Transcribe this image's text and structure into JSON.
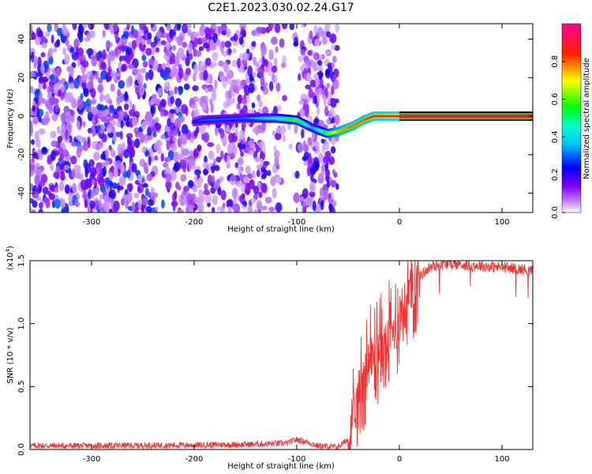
{
  "title": "C2E1.2023.030.02.24.G17",
  "chart_data": [
    {
      "type": "heatmap",
      "xlabel": "Height of straight line (km)",
      "ylabel": "Frequency (Hz)",
      "xlim": [
        -360,
        130
      ],
      "ylim": [
        -50,
        48
      ],
      "xticks": [
        -300,
        -200,
        -100,
        0,
        100
      ],
      "yticks": [
        -40,
        -20,
        0,
        20,
        40
      ],
      "colorbar": {
        "label": "Normalized spectral amplitude",
        "range": [
          0,
          1
        ],
        "ticks": [
          0.0,
          0.2,
          0.4,
          0.6,
          0.8
        ],
        "tick_labels": [
          "0.0",
          "0.2",
          "0.4",
          "0.6",
          "0.8"
        ],
        "colors": [
          "#ffffff",
          "#8000ff",
          "#0000ff",
          "#00ffff",
          "#00ff00",
          "#ffff00",
          "#ff0000",
          "#ff0080"
        ]
      },
      "signal_track": {
        "description_points_x": [
          -200,
          -190,
          -150,
          -120,
          -100,
          -85,
          -70,
          -60,
          -45,
          -35,
          -25,
          -10,
          0,
          130
        ],
        "description_points_y": [
          -3,
          -2,
          -1,
          -1,
          -2,
          -6,
          -9,
          -8,
          -5,
          -2,
          0,
          0,
          0,
          0
        ],
        "amplitude": [
          0.25,
          0.3,
          0.3,
          0.45,
          0.6,
          0.35,
          0.6,
          0.75,
          0.8,
          0.8,
          0.85,
          0.9,
          0.9,
          0.92
        ]
      },
      "noise_region_x": [
        -360,
        -60
      ],
      "grid": false
    },
    {
      "type": "line",
      "xlabel": "Height of straight line (km)",
      "ylabel": "SNR (10 * v/v)",
      "y_multiplier_label": "(x10",
      "y_multiplier_exp": "4",
      "y_multiplier_close": ")",
      "xlim": [
        -360,
        130
      ],
      "ylim": [
        0,
        15000
      ],
      "xticks": [
        -300,
        -200,
        -100,
        0,
        100
      ],
      "yticks": [
        0,
        5000,
        10000,
        15000
      ],
      "ytick_labels": [
        "0.0",
        "0.5",
        "1.0",
        "1.5"
      ],
      "series": [
        {
          "color": "#ee3333",
          "x": [
            -360,
            -300,
            -200,
            -150,
            -110,
            -100,
            -90,
            -80,
            -60,
            -50,
            -45,
            -40,
            -35,
            -30,
            -25,
            -20,
            -15,
            -10,
            -5,
            0,
            10,
            20,
            30,
            40,
            50,
            60,
            70,
            80,
            90,
            100,
            110,
            120,
            130
          ],
          "y": [
            300,
            300,
            350,
            400,
            500,
            800,
            600,
            300,
            200,
            800,
            2000,
            4500,
            6000,
            7000,
            7500,
            8000,
            8200,
            9000,
            9500,
            10500,
            12500,
            13800,
            14500,
            14700,
            14800,
            14700,
            14600,
            14600,
            14500,
            14500,
            14400,
            14300,
            14200
          ]
        }
      ],
      "grid": false
    }
  ]
}
